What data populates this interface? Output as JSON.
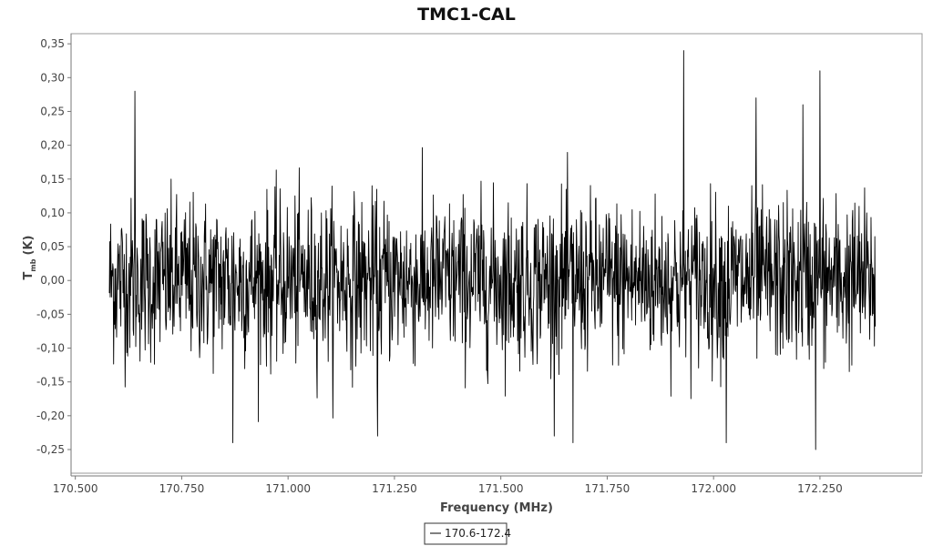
{
  "chart_data": {
    "type": "line",
    "title": "TMC1-CAL",
    "xlabel": "Frequency (MHz)",
    "ylabel": {
      "main": "T",
      "sub": "mb",
      "unit": "(K)"
    },
    "xlim": [
      170.49,
      172.49
    ],
    "ylim": [
      -0.285,
      0.365
    ],
    "x_ticks": [
      170.5,
      170.75,
      171.0,
      171.25,
      171.5,
      171.75,
      172.0,
      172.25
    ],
    "x_tick_labels": [
      "170.500",
      "170.750",
      "171.000",
      "171.250",
      "171.500",
      "171.750",
      "172.000",
      "172.250"
    ],
    "y_ticks": [
      -0.25,
      -0.2,
      -0.15,
      -0.1,
      -0.05,
      0.0,
      0.05,
      0.1,
      0.15,
      0.2,
      0.25,
      0.3,
      0.35
    ],
    "y_tick_labels": [
      "-0,25",
      "-0,20",
      "-0,15",
      "-0,10",
      "-0,05",
      "0,00",
      "0,05",
      "0,10",
      "0,15",
      "0,20",
      "0,25",
      "0,30",
      "0,35"
    ],
    "grid": false,
    "legend_position": "bottom-center",
    "series": [
      {
        "name": "170.6-172.4",
        "color": "#000000",
        "x_range": [
          170.58,
          172.38
        ],
        "mean": 0.0,
        "noise_rms": 0.06,
        "y_range": [
          -0.25,
          0.34
        ],
        "peaks": [
          {
            "x": 170.64,
            "y": 0.28
          },
          {
            "x": 171.93,
            "y": 0.34
          },
          {
            "x": 172.25,
            "y": 0.31
          },
          {
            "x": 172.21,
            "y": 0.26
          },
          {
            "x": 172.1,
            "y": 0.27
          }
        ],
        "troughs": [
          {
            "x": 170.87,
            "y": -0.24
          },
          {
            "x": 172.24,
            "y": -0.25
          },
          {
            "x": 172.03,
            "y": -0.24
          },
          {
            "x": 171.67,
            "y": -0.24
          },
          {
            "x": 171.21,
            "y": -0.23
          }
        ]
      }
    ]
  }
}
